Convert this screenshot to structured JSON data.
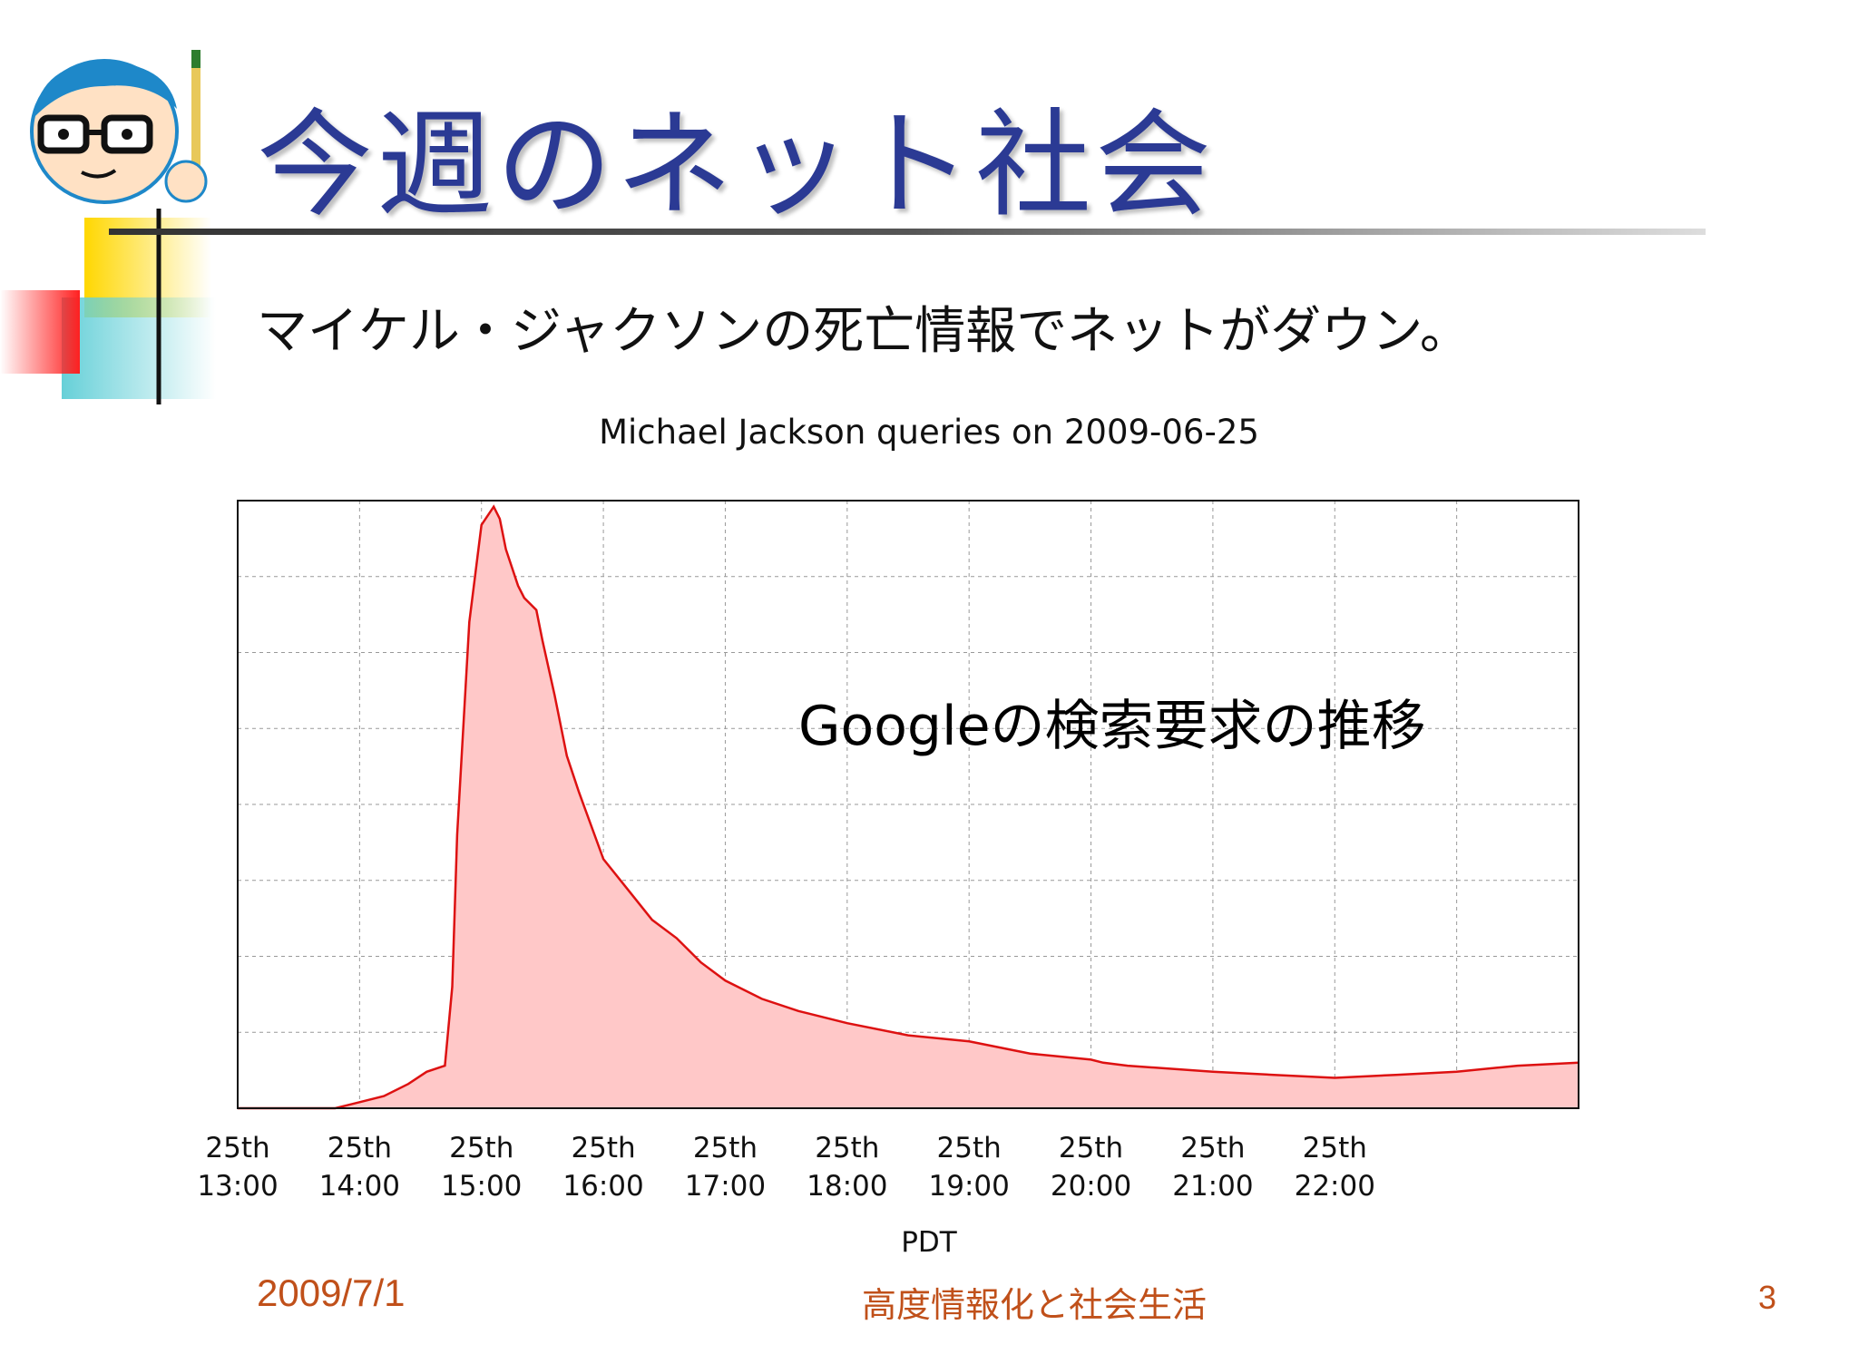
{
  "slide": {
    "title": "今週のネット社会",
    "subtitle": "マイケル・ジャクソンの死亡情報でネットがダウン。",
    "annotation_latin": "Google",
    "annotation_jp": "の検索要求の推移",
    "footer": {
      "date": "2009/7/1",
      "course": "高度情報化と社会生活",
      "page": "3"
    }
  },
  "icons": {
    "mascot": "teacher-with-glasses-icon"
  },
  "colors": {
    "title": "#2b3a94",
    "footer": "#c0501a",
    "series_line": "#dd1111",
    "series_fill": "#ffc8c8"
  },
  "chart_data": {
    "type": "area",
    "title": "Michael Jackson queries on 2009-06-25",
    "xlabel": "PDT",
    "ylabel": "",
    "x_tick_labels": [
      [
        "25th",
        "13:00"
      ],
      [
        "25th",
        "14:00"
      ],
      [
        "25th",
        "15:00"
      ],
      [
        "25th",
        "16:00"
      ],
      [
        "25th",
        "17:00"
      ],
      [
        "25th",
        "18:00"
      ],
      [
        "25th",
        "19:00"
      ],
      [
        "25th",
        "20:00"
      ],
      [
        "25th",
        "21:00"
      ],
      [
        "25th",
        "22:00"
      ]
    ],
    "xlim": [
      13.0,
      24.0
    ],
    "ylim": [
      0,
      100
    ],
    "grid": true,
    "x": [
      13.0,
      13.8,
      14.0,
      14.2,
      14.4,
      14.55,
      14.7,
      14.76,
      14.8,
      14.9,
      15.0,
      15.1,
      15.15,
      15.2,
      15.3,
      15.35,
      15.45,
      15.5,
      15.6,
      15.7,
      15.8,
      16.0,
      16.2,
      16.4,
      16.6,
      16.8,
      17.0,
      17.3,
      17.6,
      18.0,
      18.5,
      19.0,
      19.5,
      20.0,
      20.1,
      20.3,
      21.0,
      21.5,
      22.0,
      22.5,
      23.0,
      23.5,
      24.0
    ],
    "y": [
      0,
      0,
      1,
      2,
      4,
      6,
      7,
      20,
      45,
      80,
      96,
      99,
      97,
      92,
      86,
      84,
      82,
      77,
      68,
      58,
      52,
      41,
      36,
      31,
      28,
      24,
      21,
      18,
      16,
      14,
      12,
      11,
      9,
      8,
      7.5,
      7,
      6,
      5.5,
      5,
      5.5,
      6,
      7,
      7.5
    ]
  }
}
